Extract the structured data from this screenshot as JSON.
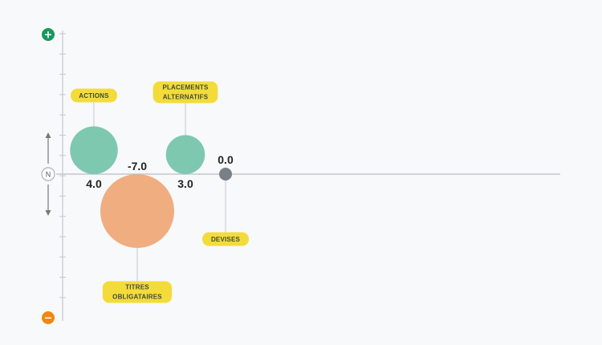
{
  "chart_data": {
    "type": "bubble",
    "title": "",
    "axis": {
      "top_label": "+",
      "bottom_label": "−",
      "neutral_label": "N"
    },
    "ylim": [
      -10,
      10
    ],
    "grid": false,
    "series": [
      {
        "label": [
          "ACTIONS"
        ],
        "value": 4.0,
        "value_label": "4.0",
        "color": "#7ec8b0"
      },
      {
        "label": [
          "TITRES",
          "OBLIGATAIRES"
        ],
        "value": -7.0,
        "value_label": "-7.0",
        "color": "#f0ad80"
      },
      {
        "label": [
          "PLACEMENTS",
          "ALTERNATIFS"
        ],
        "value": 3.0,
        "value_label": "3.0",
        "color": "#7ec8b0"
      },
      {
        "label": [
          "DEVISES"
        ],
        "value": 0.0,
        "value_label": "0.0",
        "color": "#7a8088"
      }
    ],
    "colors": {
      "positive_button": "#17975a",
      "negative_button": "#f0880f",
      "label_background": "#f3dc3a",
      "axis": "#c3c8ce"
    }
  }
}
